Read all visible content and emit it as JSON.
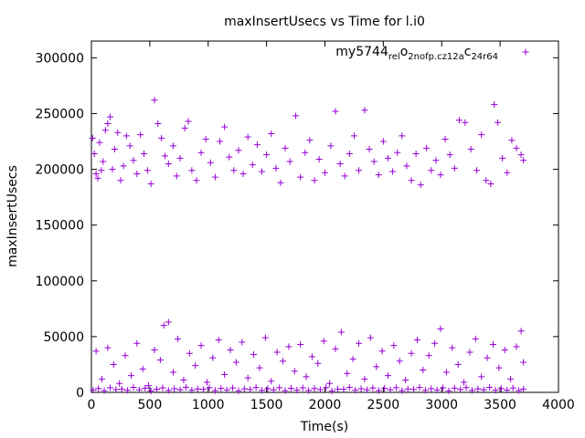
{
  "chart_data": {
    "type": "scatter",
    "title": "maxInsertUsecs vs Time for l.i0",
    "xlabel": "Time(s)",
    "ylabel": "maxInsertUsecs",
    "xlim": [
      0,
      4000
    ],
    "ylim": [
      0,
      315000
    ],
    "x_ticks": [
      0,
      500,
      1000,
      1500,
      2000,
      2500,
      3000,
      3500,
      4000
    ],
    "x_tick_labels": [
      "0",
      "500",
      "1000",
      "1500",
      "2000",
      "2500",
      "3000",
      "3500",
      "4000"
    ],
    "y_ticks": [
      0,
      50000,
      100000,
      150000,
      200000,
      250000,
      300000
    ],
    "y_tick_labels": [
      "0",
      "50000",
      "100000",
      "150000",
      "200000",
      "250000",
      "300000"
    ],
    "grid": false,
    "legend_position": "top-right",
    "marker": "plus",
    "series_color": "#9400d3",
    "series": [
      {
        "name": "my5744_rel_o2nofp.cz12a_c24r64",
        "name_parts": [
          {
            "text": "my5744",
            "sub": false
          },
          {
            "text": "rel",
            "sub": true
          },
          {
            "text": "o",
            "sub": false
          },
          {
            "text": "2nofp.cz12a",
            "sub": true
          },
          {
            "text": "c",
            "sub": false
          },
          {
            "text": "24r64",
            "sub": true
          }
        ],
        "points": [
          [
            10,
            228000
          ],
          [
            25,
            214000
          ],
          [
            40,
            196000
          ],
          [
            55,
            192000
          ],
          [
            70,
            224000
          ],
          [
            85,
            199000
          ],
          [
            100,
            207000
          ],
          [
            120,
            235000
          ],
          [
            140,
            241000
          ],
          [
            160,
            247000
          ],
          [
            180,
            200000
          ],
          [
            200,
            218000
          ],
          [
            225,
            233000
          ],
          [
            250,
            190000
          ],
          [
            275,
            203000
          ],
          [
            300,
            230000
          ],
          [
            330,
            221000
          ],
          [
            360,
            208000
          ],
          [
            390,
            196000
          ],
          [
            420,
            231000
          ],
          [
            450,
            214000
          ],
          [
            480,
            199000
          ],
          [
            510,
            187000
          ],
          [
            540,
            262000
          ],
          [
            570,
            241000
          ],
          [
            600,
            228000
          ],
          [
            630,
            212000
          ],
          [
            660,
            205000
          ],
          [
            700,
            221000
          ],
          [
            730,
            194000
          ],
          [
            760,
            210000
          ],
          [
            800,
            237000
          ],
          [
            830,
            243000
          ],
          [
            860,
            199000
          ],
          [
            900,
            190000
          ],
          [
            940,
            215000
          ],
          [
            980,
            227000
          ],
          [
            1020,
            206000
          ],
          [
            1060,
            193000
          ],
          [
            1100,
            225000
          ],
          [
            1140,
            238000
          ],
          [
            1180,
            211000
          ],
          [
            1220,
            199000
          ],
          [
            1260,
            217000
          ],
          [
            1300,
            196000
          ],
          [
            1340,
            229000
          ],
          [
            1380,
            204000
          ],
          [
            1420,
            222000
          ],
          [
            1460,
            198000
          ],
          [
            1500,
            213000
          ],
          [
            1540,
            232000
          ],
          [
            1580,
            201000
          ],
          [
            1620,
            188000
          ],
          [
            1660,
            219000
          ],
          [
            1700,
            207000
          ],
          [
            1750,
            248000
          ],
          [
            1790,
            193000
          ],
          [
            1830,
            215000
          ],
          [
            1870,
            226000
          ],
          [
            1910,
            190000
          ],
          [
            1950,
            209000
          ],
          [
            2000,
            197000
          ],
          [
            2050,
            221000
          ],
          [
            2090,
            252000
          ],
          [
            2130,
            205000
          ],
          [
            2170,
            194000
          ],
          [
            2210,
            214000
          ],
          [
            2250,
            230000
          ],
          [
            2290,
            199000
          ],
          [
            2340,
            253000
          ],
          [
            2380,
            218000
          ],
          [
            2420,
            207000
          ],
          [
            2460,
            195000
          ],
          [
            2500,
            225000
          ],
          [
            2540,
            210000
          ],
          [
            2580,
            198000
          ],
          [
            2620,
            215000
          ],
          [
            2660,
            230000
          ],
          [
            2700,
            203000
          ],
          [
            2740,
            190000
          ],
          [
            2780,
            214000
          ],
          [
            2820,
            186000
          ],
          [
            2870,
            219000
          ],
          [
            2910,
            199000
          ],
          [
            2950,
            208000
          ],
          [
            2990,
            195000
          ],
          [
            3030,
            227000
          ],
          [
            3070,
            213000
          ],
          [
            3110,
            201000
          ],
          [
            3150,
            244000
          ],
          [
            3200,
            242000
          ],
          [
            3250,
            218000
          ],
          [
            3300,
            199000
          ],
          [
            3340,
            231000
          ],
          [
            3380,
            190000
          ],
          [
            3420,
            187000
          ],
          [
            3450,
            258000
          ],
          [
            3480,
            242000
          ],
          [
            3520,
            210000
          ],
          [
            3560,
            197000
          ],
          [
            3600,
            226000
          ],
          [
            3640,
            219000
          ],
          [
            3680,
            213000
          ],
          [
            3700,
            208000
          ],
          [
            40,
            37000
          ],
          [
            90,
            12000
          ],
          [
            140,
            40000
          ],
          [
            190,
            25000
          ],
          [
            240,
            8000
          ],
          [
            290,
            33000
          ],
          [
            340,
            15000
          ],
          [
            390,
            44000
          ],
          [
            440,
            21000
          ],
          [
            490,
            6000
          ],
          [
            540,
            38000
          ],
          [
            590,
            29000
          ],
          [
            620,
            60000
          ],
          [
            660,
            63000
          ],
          [
            700,
            18000
          ],
          [
            740,
            48000
          ],
          [
            790,
            11000
          ],
          [
            840,
            35000
          ],
          [
            890,
            24000
          ],
          [
            940,
            42000
          ],
          [
            990,
            9000
          ],
          [
            1040,
            31000
          ],
          [
            1090,
            47000
          ],
          [
            1140,
            16000
          ],
          [
            1190,
            38000
          ],
          [
            1240,
            27000
          ],
          [
            1290,
            45000
          ],
          [
            1340,
            13000
          ],
          [
            1390,
            34000
          ],
          [
            1440,
            22000
          ],
          [
            1490,
            49000
          ],
          [
            1540,
            10000
          ],
          [
            1590,
            36000
          ],
          [
            1640,
            28000
          ],
          [
            1690,
            41000
          ],
          [
            1740,
            19000
          ],
          [
            1790,
            43000
          ],
          [
            1840,
            14000
          ],
          [
            1890,
            32000
          ],
          [
            1940,
            26000
          ],
          [
            1990,
            46000
          ],
          [
            2040,
            8000
          ],
          [
            2090,
            39000
          ],
          [
            2140,
            54000
          ],
          [
            2190,
            17000
          ],
          [
            2240,
            30000
          ],
          [
            2290,
            44000
          ],
          [
            2340,
            12000
          ],
          [
            2390,
            49000
          ],
          [
            2440,
            23000
          ],
          [
            2490,
            37000
          ],
          [
            2540,
            15000
          ],
          [
            2590,
            42000
          ],
          [
            2640,
            28000
          ],
          [
            2690,
            11000
          ],
          [
            2740,
            35000
          ],
          [
            2790,
            47000
          ],
          [
            2840,
            20000
          ],
          [
            2890,
            33000
          ],
          [
            2940,
            44000
          ],
          [
            2990,
            57000
          ],
          [
            3040,
            18000
          ],
          [
            3090,
            40000
          ],
          [
            3140,
            25000
          ],
          [
            3190,
            9000
          ],
          [
            3240,
            36000
          ],
          [
            3290,
            48000
          ],
          [
            3340,
            14000
          ],
          [
            3390,
            31000
          ],
          [
            3440,
            43000
          ],
          [
            3490,
            22000
          ],
          [
            3540,
            38000
          ],
          [
            3590,
            12000
          ],
          [
            3640,
            41000
          ],
          [
            3680,
            55000
          ],
          [
            3700,
            27000
          ],
          [
            15,
            2000
          ],
          [
            60,
            3500
          ],
          [
            110,
            1500
          ],
          [
            160,
            4200
          ],
          [
            210,
            2500
          ],
          [
            260,
            3000
          ],
          [
            310,
            1800
          ],
          [
            360,
            4500
          ],
          [
            410,
            2200
          ],
          [
            460,
            3800
          ],
          [
            510,
            1200
          ],
          [
            560,
            2900
          ],
          [
            610,
            4100
          ],
          [
            660,
            1700
          ],
          [
            710,
            3300
          ],
          [
            760,
            2400
          ],
          [
            810,
            4600
          ],
          [
            860,
            1900
          ],
          [
            910,
            3100
          ],
          [
            960,
            2700
          ],
          [
            1010,
            4300
          ],
          [
            1060,
            1600
          ],
          [
            1110,
            3600
          ],
          [
            1160,
            2100
          ],
          [
            1210,
            4000
          ],
          [
            1260,
            1400
          ],
          [
            1310,
            3200
          ],
          [
            1360,
            2600
          ],
          [
            1410,
            4400
          ],
          [
            1460,
            1800
          ],
          [
            1510,
            3400
          ],
          [
            1560,
            2300
          ],
          [
            1610,
            4200
          ],
          [
            1660,
            1500
          ],
          [
            1710,
            3700
          ],
          [
            1760,
            2000
          ],
          [
            1810,
            4100
          ],
          [
            1860,
            1700
          ],
          [
            1910,
            3500
          ],
          [
            1960,
            2500
          ],
          [
            2010,
            4300
          ],
          [
            2060,
            1300
          ],
          [
            2110,
            3000
          ],
          [
            2160,
            2800
          ],
          [
            2210,
            4500
          ],
          [
            2260,
            1900
          ],
          [
            2310,
            3300
          ],
          [
            2360,
            2200
          ],
          [
            2410,
            4000
          ],
          [
            2460,
            1600
          ],
          [
            2510,
            3600
          ],
          [
            2560,
            2400
          ],
          [
            2610,
            4200
          ],
          [
            2660,
            1500
          ],
          [
            2710,
            3100
          ],
          [
            2760,
            2700
          ],
          [
            2810,
            4400
          ],
          [
            2860,
            1800
          ],
          [
            2910,
            3400
          ],
          [
            2960,
            2100
          ],
          [
            3010,
            4100
          ],
          [
            3060,
            1400
          ],
          [
            3110,
            3800
          ],
          [
            3160,
            2600
          ],
          [
            3210,
            4300
          ],
          [
            3260,
            1700
          ],
          [
            3310,
            3200
          ],
          [
            3360,
            2300
          ],
          [
            3410,
            4500
          ],
          [
            3460,
            1900
          ],
          [
            3510,
            3500
          ],
          [
            3560,
            2000
          ],
          [
            3610,
            4000
          ],
          [
            3660,
            1600
          ],
          [
            3700,
            3000
          ]
        ]
      }
    ]
  }
}
